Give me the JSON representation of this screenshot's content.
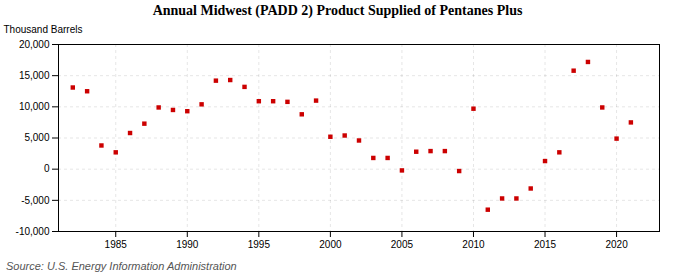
{
  "chart_data": {
    "type": "scatter",
    "title": "Annual Midwest (PADD 2) Product Supplied of Pentanes Plus",
    "ylabel": "Thousand Barrels",
    "source": "Source: U.S. Energy Information Administration",
    "color": "#cc0000",
    "marker": "square",
    "grid": true,
    "xlim": [
      1981,
      2023
    ],
    "ylim": [
      -10000,
      20000
    ],
    "xticks": [
      1985,
      1990,
      1995,
      2000,
      2005,
      2010,
      2015,
      2020
    ],
    "yticks": [
      {
        "value": -10000,
        "label": "-10,000"
      },
      {
        "value": -5000,
        "label": "-5,000"
      },
      0,
      {
        "value": 5000,
        "label": "5,000"
      },
      {
        "value": 10000,
        "label": "10,000"
      },
      {
        "value": 15000,
        "label": "15,000"
      },
      {
        "value": 20000,
        "label": "20,000"
      }
    ],
    "x": [
      1982,
      1983,
      1984,
      1985,
      1986,
      1987,
      1988,
      1989,
      1990,
      1991,
      1992,
      1993,
      1994,
      1995,
      1996,
      1997,
      1998,
      1999,
      2000,
      2001,
      2002,
      2003,
      2004,
      2005,
      2006,
      2007,
      2008,
      2009,
      2010,
      2011,
      2012,
      2013,
      2014,
      2015,
      2016,
      2017,
      2018,
      2019,
      2020,
      2021
    ],
    "values": [
      13100,
      12500,
      3800,
      2700,
      5800,
      7300,
      9900,
      9500,
      9300,
      10400,
      14200,
      14300,
      13200,
      10900,
      10900,
      10800,
      8800,
      11000,
      5200,
      5400,
      4600,
      1800,
      1800,
      -200,
      2800,
      2900,
      2900,
      -300,
      9700,
      -6500,
      -4700,
      -4700,
      -3100,
      1300,
      2700,
      15800,
      17200,
      9900,
      4900,
      7500
    ]
  }
}
